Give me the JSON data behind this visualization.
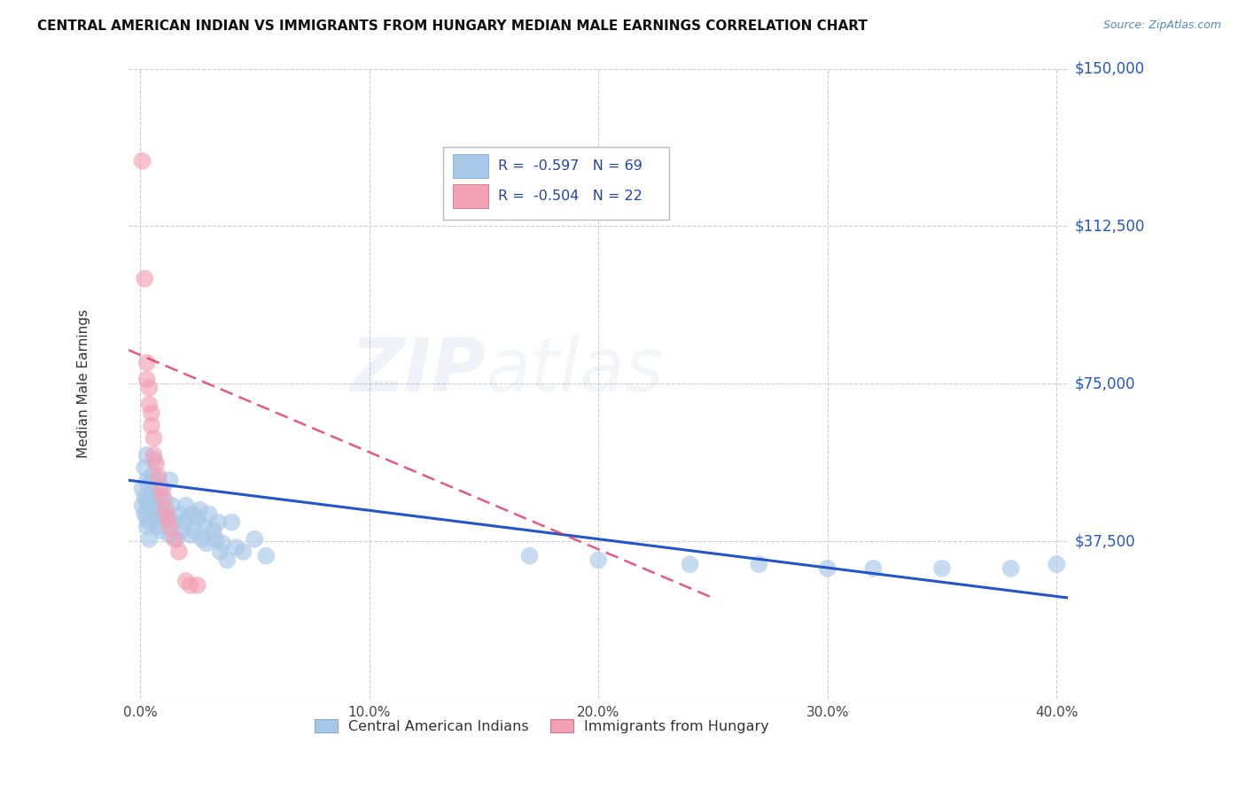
{
  "title": "CENTRAL AMERICAN INDIAN VS IMMIGRANTS FROM HUNGARY MEDIAN MALE EARNINGS CORRELATION CHART",
  "source": "Source: ZipAtlas.com",
  "ylabel": "Median Male Earnings",
  "xlabel_ticks": [
    "0.0%",
    "10.0%",
    "20.0%",
    "30.0%",
    "40.0%"
  ],
  "xlabel_vals": [
    0.0,
    0.1,
    0.2,
    0.3,
    0.4
  ],
  "ylim": [
    0,
    150000
  ],
  "xlim": [
    -0.005,
    0.405
  ],
  "yticks": [
    0,
    37500,
    75000,
    112500,
    150000
  ],
  "ytick_labels": [
    "",
    "$37,500",
    "$75,000",
    "$112,500",
    "$150,000"
  ],
  "blue_R": "-0.597",
  "blue_N": "69",
  "pink_R": "-0.504",
  "pink_N": "22",
  "legend1_label": "Central American Indians",
  "legend2_label": "Immigrants from Hungary",
  "blue_color": "#a8c8e8",
  "pink_color": "#f4a0b5",
  "blue_line_color": "#2255cc",
  "pink_line_color": "#e03060",
  "blue_x": [
    0.001,
    0.001,
    0.002,
    0.002,
    0.002,
    0.003,
    0.003,
    0.003,
    0.003,
    0.003,
    0.004,
    0.004,
    0.004,
    0.004,
    0.005,
    0.005,
    0.005,
    0.006,
    0.006,
    0.006,
    0.007,
    0.007,
    0.008,
    0.008,
    0.009,
    0.009,
    0.01,
    0.01,
    0.011,
    0.012,
    0.013,
    0.013,
    0.014,
    0.015,
    0.016,
    0.017,
    0.018,
    0.019,
    0.02,
    0.021,
    0.022,
    0.023,
    0.024,
    0.025,
    0.026,
    0.027,
    0.028,
    0.029,
    0.03,
    0.032,
    0.033,
    0.034,
    0.035,
    0.036,
    0.038,
    0.04,
    0.042,
    0.045,
    0.05,
    0.055,
    0.17,
    0.2,
    0.24,
    0.27,
    0.3,
    0.32,
    0.35,
    0.38,
    0.4
  ],
  "blue_y": [
    50000,
    46000,
    55000,
    48000,
    44000,
    52000,
    47000,
    43000,
    58000,
    41000,
    51000,
    46000,
    42000,
    38000,
    53000,
    48000,
    44000,
    57000,
    50000,
    45000,
    48000,
    43000,
    52000,
    41000,
    46000,
    40000,
    50000,
    44000,
    47000,
    43000,
    52000,
    39000,
    46000,
    42000,
    38000,
    44000,
    40000,
    42000,
    46000,
    43000,
    39000,
    44000,
    40000,
    43000,
    45000,
    38000,
    41000,
    37000,
    44000,
    40000,
    38000,
    42000,
    35000,
    37000,
    33000,
    42000,
    36000,
    35000,
    38000,
    34000,
    34000,
    33000,
    32000,
    32000,
    31000,
    31000,
    31000,
    31000,
    32000
  ],
  "pink_x": [
    0.001,
    0.002,
    0.003,
    0.003,
    0.004,
    0.004,
    0.005,
    0.005,
    0.006,
    0.006,
    0.007,
    0.008,
    0.009,
    0.01,
    0.011,
    0.012,
    0.013,
    0.015,
    0.017,
    0.02,
    0.022,
    0.025
  ],
  "pink_y": [
    128000,
    100000,
    80000,
    76000,
    74000,
    70000,
    68000,
    65000,
    62000,
    58000,
    56000,
    53000,
    50000,
    48000,
    45000,
    43000,
    41000,
    38000,
    35000,
    28000,
    27000,
    27000
  ],
  "blue_line_x": [
    -0.005,
    0.405
  ],
  "blue_line_y": [
    52000,
    24000
  ],
  "pink_line_x": [
    -0.005,
    0.25
  ],
  "pink_line_y": [
    83000,
    24000
  ]
}
